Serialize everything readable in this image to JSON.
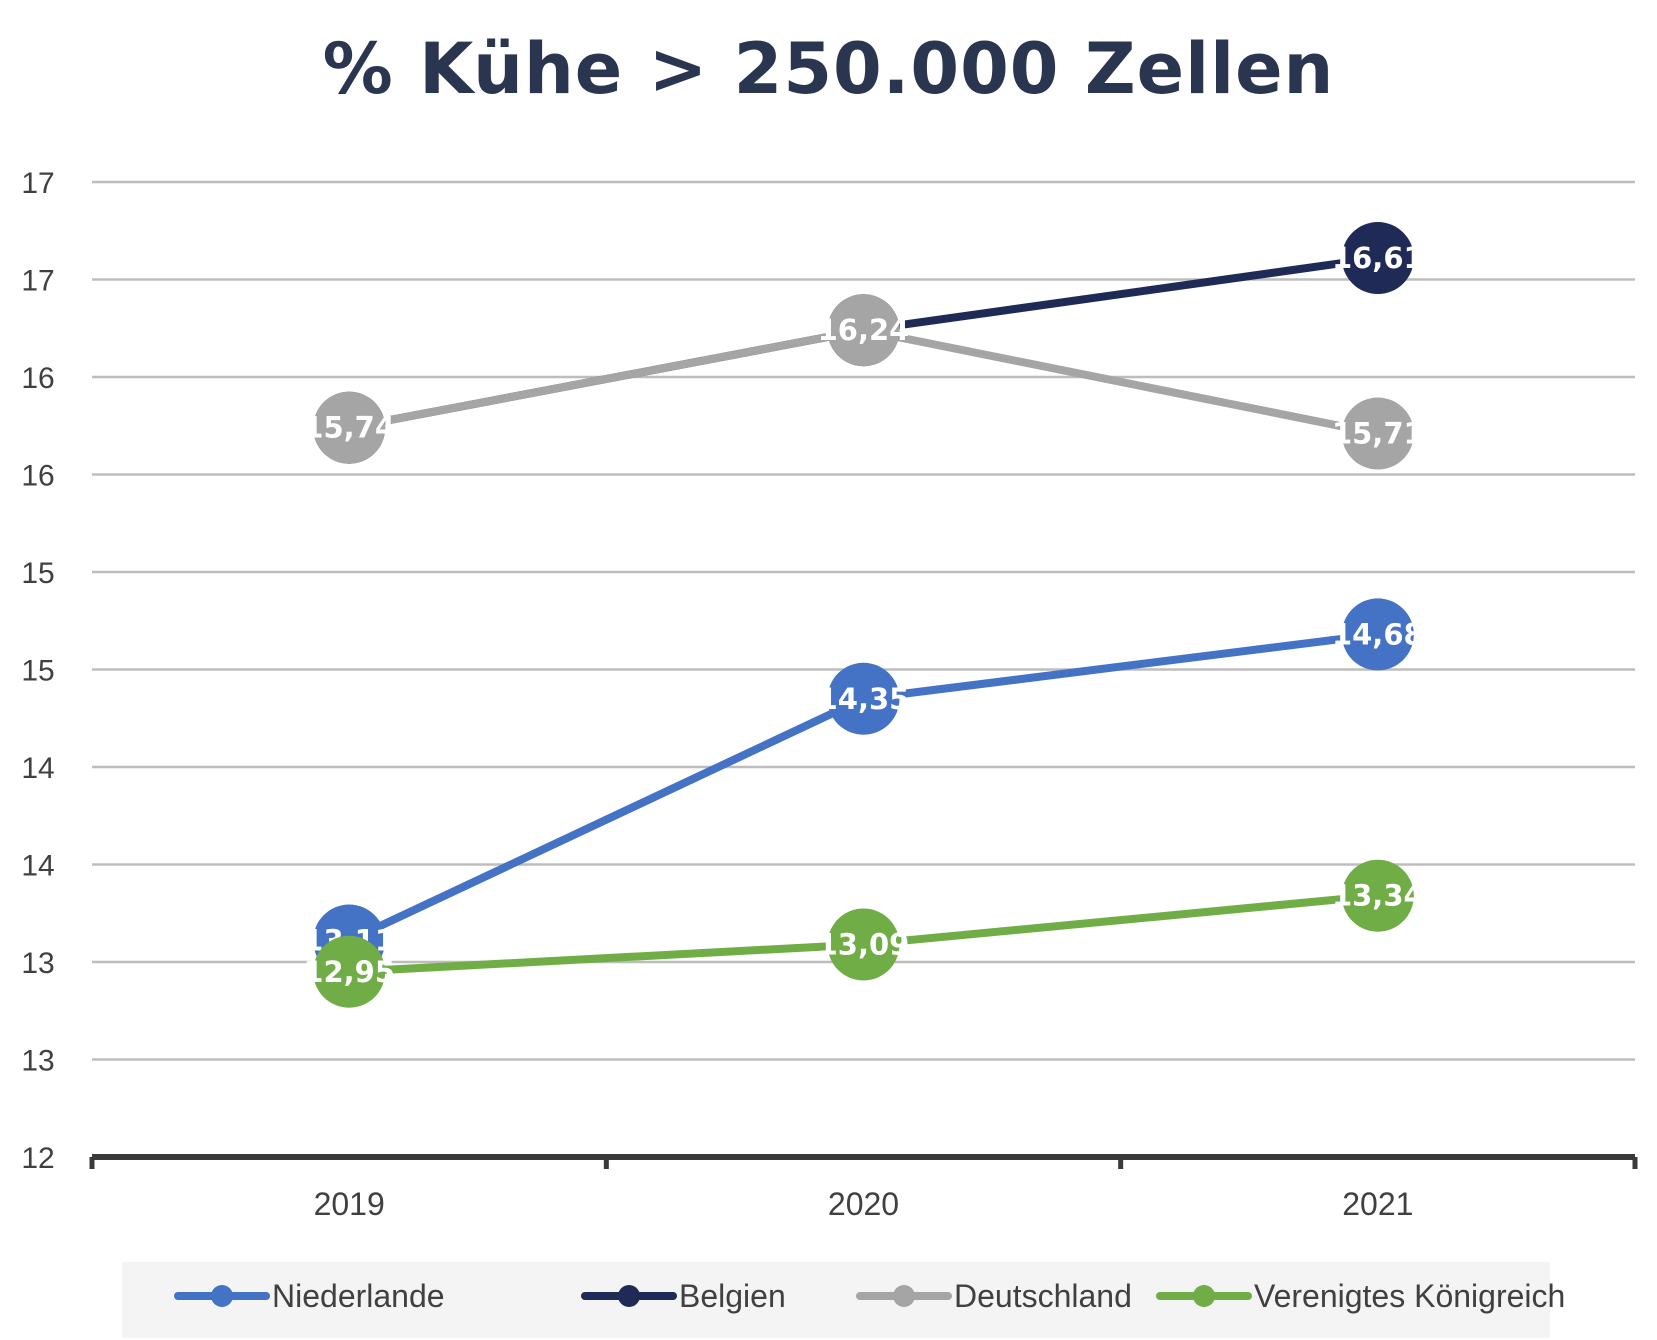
{
  "chart_data": {
    "type": "line",
    "title": "% Kühe > 250.000 Zellen",
    "categories": [
      "2019",
      "2020",
      "2021"
    ],
    "y_tick_labels": [
      "12",
      "13",
      "13",
      "14",
      "14",
      "15",
      "15",
      "16",
      "16",
      "17",
      "17"
    ],
    "ylim": [
      12,
      17
    ],
    "grid": true,
    "legend_position": "bottom",
    "series": [
      {
        "name": "Niederlande",
        "values": [
          13.11,
          14.35,
          14.68
        ],
        "labels": [
          "13,11",
          "14,35",
          "14,68"
        ],
        "color": "#4472c4"
      },
      {
        "name": "Belgien",
        "values": [
          15.74,
          16.24,
          16.61
        ],
        "labels": [
          "",
          "",
          "16,61"
        ],
        "color": "#1f2a56"
      },
      {
        "name": "Deutschland",
        "values": [
          15.74,
          16.24,
          15.71
        ],
        "labels": [
          "15,74",
          "16,24",
          "15,71"
        ],
        "color": "#a5a5a5"
      },
      {
        "name": "Verenigtes Königreich",
        "values": [
          12.95,
          13.09,
          13.34
        ],
        "labels": [
          "12,95",
          "13,09",
          "13,34"
        ],
        "color": "#70ad47"
      }
    ]
  }
}
